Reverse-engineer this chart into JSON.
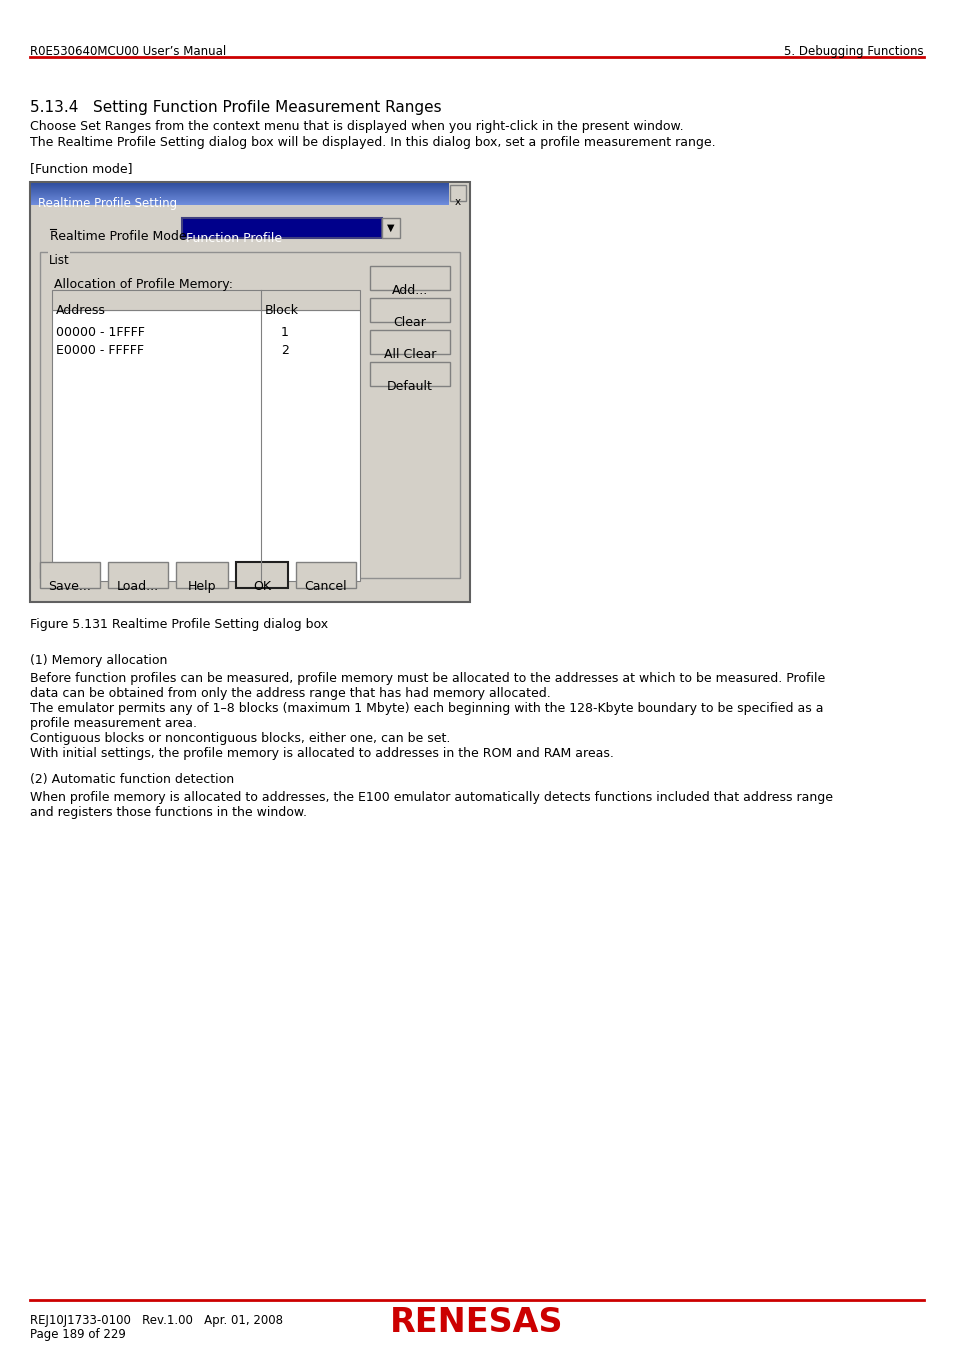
{
  "page_title_left": "R0E530640MCU00 User’s Manual",
  "page_title_right": "5. Debugging Functions",
  "header_line_color": "#cc0000",
  "section_heading": "5.13.4   Setting Function Profile Measurement Ranges",
  "para1": "Choose Set Ranges from the context menu that is displayed when you right-click in the present window.",
  "para2": "The Realtime Profile Setting dialog box will be displayed. In this dialog box, set a profile measurement range.",
  "function_mode_label": "[Function mode]",
  "dialog_title": "Realtime Profile Setting",
  "dialog_bg": "#d4d0c8",
  "label_profile_mode": "Realtime Profile Mode:",
  "dropdown_text": "Function Profile",
  "dropdown_bg": "#00008b",
  "dropdown_text_color": "#ffffff",
  "list_label": "List",
  "alloc_label": "Allocation of Profile Memory:",
  "table_headers": [
    "Address",
    "Block"
  ],
  "table_rows": [
    [
      "00000 - 1FFFF",
      "1"
    ],
    [
      "E0000 - FFFFF",
      "2"
    ]
  ],
  "buttons_right": [
    "Add...",
    "Clear",
    "All Clear",
    "Default"
  ],
  "buttons_bottom": [
    "Save...",
    "Load...",
    "Help",
    "OK",
    "Cancel"
  ],
  "figure_caption": "Figure 5.131 Realtime Profile Setting dialog box",
  "body_text_1": "(1) Memory allocation",
  "body_para1": "Before function profiles can be measured, profile memory must be allocated to the addresses at which to be measured. Profile",
  "body_para1b": "data can be obtained from only the address range that has had memory allocated.",
  "body_para2": "The emulator permits any of 1–8 blocks (maximum 1 Mbyte) each beginning with the 128-Kbyte boundary to be specified as a",
  "body_para2b": "profile measurement area.",
  "body_para3": "Contiguous blocks or noncontiguous blocks, either one, can be set.",
  "body_para4": "With initial settings, the profile memory is allocated to addresses in the ROM and RAM areas.",
  "body_text_2": "(2) Automatic function detection",
  "body_para5": "When profile memory is allocated to addresses, the E100 emulator automatically detects functions included that address range",
  "body_para5b": "and registers those functions in the window.",
  "footer_left1": "REJ10J1733-0100   Rev.1.00   Apr. 01, 2008",
  "footer_left2": "Page 189 of 229",
  "footer_line_color": "#cc0000",
  "renesas_color": "#cc0000",
  "bg_color": "#ffffff"
}
